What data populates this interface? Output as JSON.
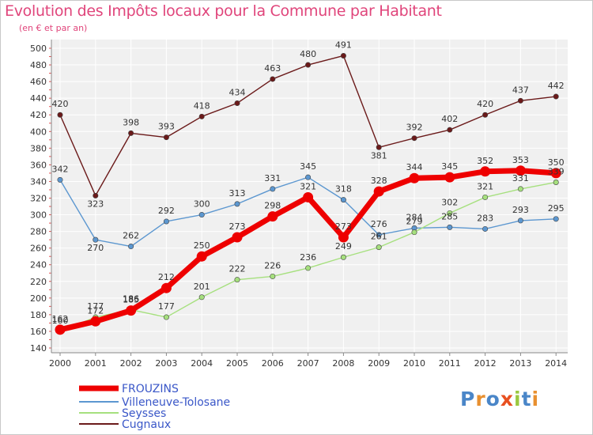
{
  "chart_data": {
    "type": "line",
    "title": "Evolution des Impôts locaux pour la Commune par Habitant",
    "subtitle": "(en € et par an)",
    "categories": [
      "2000",
      "2001",
      "2002",
      "2003",
      "2004",
      "2005",
      "2006",
      "2007",
      "2008",
      "2009",
      "2010",
      "2011",
      "2012",
      "2013",
      "2014"
    ],
    "ylim": [
      140,
      500
    ],
    "yticks": [
      140,
      160,
      180,
      200,
      220,
      240,
      260,
      280,
      300,
      320,
      340,
      360,
      380,
      400,
      420,
      440,
      460,
      480,
      500
    ],
    "grid": true,
    "legend_position": "bottom-left",
    "series": [
      {
        "name": "FROUZINS",
        "color": "#ee0000",
        "values": [
          162,
          172,
          185,
          212,
          250,
          273,
          298,
          321,
          273,
          328,
          344,
          345,
          352,
          353,
          350
        ]
      },
      {
        "name": "Villeneuve-Tolosane",
        "color": "#5c97d0",
        "values": [
          342,
          270,
          262,
          292,
          300,
          313,
          331,
          345,
          318,
          276,
          284,
          285,
          283,
          293,
          295
        ]
      },
      {
        "name": "Seysses",
        "color": "#a6e07e",
        "values": [
          160,
          177,
          186,
          177,
          201,
          222,
          226,
          236,
          249,
          261,
          279,
          302,
          321,
          331,
          339
        ]
      },
      {
        "name": "Cugnaux",
        "color": "#6b1a1a",
        "values": [
          420,
          323,
          398,
          393,
          418,
          434,
          463,
          480,
          491,
          381,
          392,
          402,
          420,
          437,
          442
        ]
      }
    ]
  },
  "logo": {
    "letters": [
      "P",
      "r",
      "o",
      "x",
      "i",
      "t",
      "i"
    ],
    "colors": [
      "#4a86c8",
      "#e89030",
      "#4a86c8",
      "#e85020",
      "#9bc840",
      "#4a86c8",
      "#e89030"
    ]
  }
}
